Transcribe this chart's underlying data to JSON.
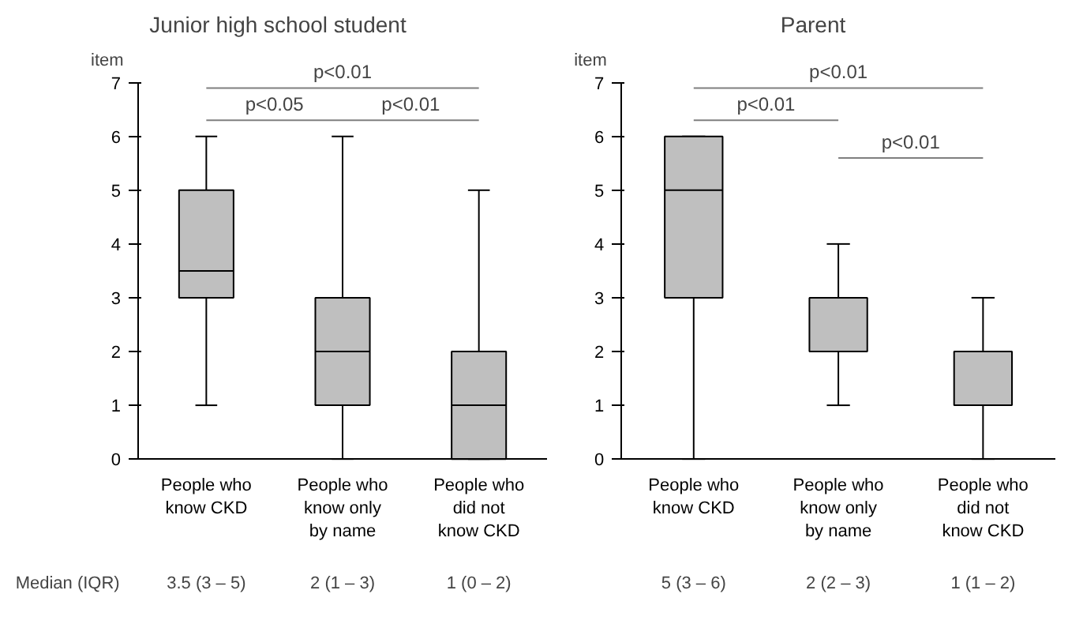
{
  "chart_data": [
    {
      "type": "box",
      "title": "Junior high school student",
      "ylabel": "item",
      "categories": [
        "People who\nknow CKD",
        "People who\nknow only\nby name",
        "People who\ndid not\nknow CKD"
      ],
      "boxes": [
        {
          "low": 1,
          "q1": 3,
          "median": 3.5,
          "q3": 5,
          "high": 6
        },
        {
          "low": 0,
          "q1": 1,
          "median": 2,
          "q3": 3,
          "high": 6
        },
        {
          "low": 0,
          "q1": 0,
          "median": 1,
          "q3": 2,
          "high": 5
        }
      ],
      "color": "#bfbfbf",
      "ylim": [
        0,
        7
      ],
      "yticks": [
        0,
        1,
        2,
        3,
        4,
        5,
        6,
        7
      ],
      "grid": false,
      "annotations": [
        "p<0.01",
        "p<0.05",
        "p<0.01",
        "Median (IQR)",
        "3.5 (3 – 5)",
        "2 (1 – 3)",
        "1 (0 – 2)"
      ]
    },
    {
      "type": "box",
      "title": "Parent",
      "ylabel": "item",
      "categories": [
        "People who\nknow CKD",
        "People who\nknow only\nby name",
        "People who\ndid not\nknow CKD"
      ],
      "boxes": [
        {
          "low": 0,
          "q1": 3,
          "median": 5,
          "q3": 6,
          "high": 6
        },
        {
          "low": 1,
          "q1": 2,
          "median": 2,
          "q3": 3,
          "high": 4
        },
        {
          "low": 0,
          "q1": 1,
          "median": 1,
          "q3": 2,
          "high": 3
        }
      ],
      "color": "#bfbfbf",
      "ylim": [
        0,
        7
      ],
      "yticks": [
        0,
        1,
        2,
        3,
        4,
        5,
        6,
        7
      ],
      "grid": false,
      "annotations": [
        "p<0.01",
        "p<0.01",
        "p<0.01",
        "5 (3 – 6)",
        "2 (2 – 3)",
        "1 (1 – 2)"
      ]
    }
  ]
}
